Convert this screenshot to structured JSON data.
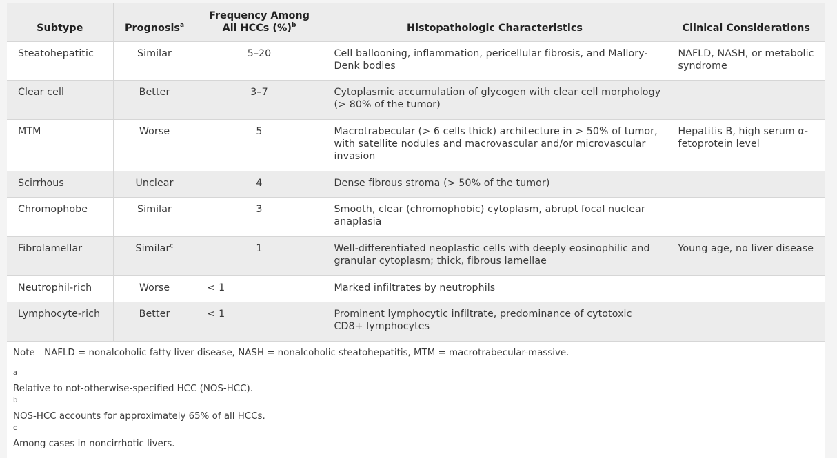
{
  "table": {
    "headers": {
      "subtype": "Subtype",
      "prognosis": "Prognosis",
      "prognosis_sup": "a",
      "frequency": "Frequency Among All HCCs (%)",
      "frequency_sup": "b",
      "histo": "Histopathologic Characteristics",
      "clinical": "Clinical Considerations"
    },
    "rows": [
      {
        "subtype": "Steatohepatitic",
        "prognosis": "Similar",
        "prognosis_sup": "",
        "frequency": "5–20",
        "histo": "Cell ballooning, inflammation, pericellular fibrosis, and Mallory-Denk bodies",
        "clinical": "NAFLD, NASH, or metabolic syndrome"
      },
      {
        "subtype": "Clear cell",
        "prognosis": "Better",
        "prognosis_sup": "",
        "frequency": "3–7",
        "histo": "Cytoplasmic accumulation of glycogen with clear cell morphology (> 80% of the tumor)",
        "clinical": ""
      },
      {
        "subtype": "MTM",
        "prognosis": "Worse",
        "prognosis_sup": "",
        "frequency": "5",
        "histo": "Macrotrabecular (> 6 cells thick) architecture in > 50% of tumor, with satellite nodules and macrovascular and/or microvascular invasion",
        "clinical": "Hepatitis B, high serum α-fetoprotein level"
      },
      {
        "subtype": "Scirrhous",
        "prognosis": "Unclear",
        "prognosis_sup": "",
        "frequency": "4",
        "histo": "Dense fibrous stroma (> 50% of the tumor)",
        "clinical": ""
      },
      {
        "subtype": "Chromophobe",
        "prognosis": "Similar",
        "prognosis_sup": "",
        "frequency": "3",
        "histo": "Smooth, clear (chromophobic) cytoplasm, abrupt focal nuclear anaplasia",
        "clinical": ""
      },
      {
        "subtype": "Fibrolamellar",
        "prognosis": "Similar",
        "prognosis_sup": "c",
        "frequency": "1",
        "histo": "Well-differentiated neoplastic cells with deeply eosinophilic and granular cytoplasm; thick, fibrous lamellae",
        "clinical": "Young age, no liver disease"
      },
      {
        "subtype": "Neutrophil-rich",
        "prognosis": "Worse",
        "prognosis_sup": "",
        "frequency": "< 1",
        "histo": "Marked infiltrates by neutrophils",
        "clinical": ""
      },
      {
        "subtype": "Lymphocyte-rich",
        "prognosis": "Better",
        "prognosis_sup": "",
        "frequency": "< 1",
        "histo": "Prominent lymphocytic infiltrate, predominance of cytotoxic CD8+ lymphocytes",
        "clinical": ""
      }
    ]
  },
  "footnotes": {
    "note": "Note—NAFLD = nonalcoholic fatty liver disease, NASH = nonalcoholic steatohepatitis, MTM = macrotrabecular-massive.",
    "a_mark": "a",
    "a_text": "Relative to not-otherwise-specified HCC (NOS-HCC).",
    "b_mark": "b",
    "b_text": "NOS-HCC accounts for approximately 65% of all HCCs.",
    "c_mark": "c",
    "c_text": "Among cases in noncirrhotic livers."
  }
}
